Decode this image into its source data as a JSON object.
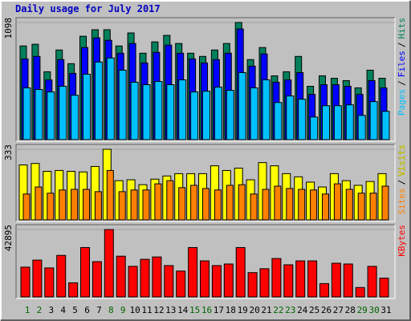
{
  "chart_data": [
    {
      "type": "bar",
      "title": "Daily usage for July 2017",
      "categories": [
        "1",
        "2",
        "3",
        "4",
        "5",
        "6",
        "7",
        "8",
        "9",
        "10",
        "11",
        "12",
        "13",
        "14",
        "15",
        "16",
        "17",
        "18",
        "19",
        "20",
        "21",
        "22",
        "23",
        "24",
        "25",
        "26",
        "27",
        "28",
        "29",
        "30",
        "31"
      ],
      "category_colors": [
        "#006400",
        "#006400",
        "#000000",
        "#000000",
        "#000000",
        "#000000",
        "#000000",
        "#006400",
        "#006400",
        "#000000",
        "#000000",
        "#000000",
        "#000000",
        "#000000",
        "#006400",
        "#006400",
        "#000000",
        "#000000",
        "#000000",
        "#000000",
        "#000000",
        "#006400",
        "#006400",
        "#000000",
        "#000000",
        "#000000",
        "#000000",
        "#000000",
        "#006400",
        "#006400",
        "#000000"
      ],
      "legend_separator": "/",
      "ylim": [
        0,
        1098
      ],
      "yticks": [
        1098
      ],
      "series": [
        {
          "name": "Hits",
          "color": "#00805c",
          "values": [
            878,
            894,
            636,
            840,
            712,
            969,
            1030,
            1030,
            878,
            1000,
            810,
            916,
            977,
            901,
            810,
            780,
            840,
            901,
            1098,
            750,
            863,
            598,
            636,
            780,
            500,
            598,
            575,
            553,
            485,
            651,
            575
          ]
        },
        {
          "name": "Files",
          "color": "#0000ff",
          "values": [
            757,
            780,
            560,
            750,
            621,
            863,
            954,
            931,
            810,
            901,
            719,
            818,
            886,
            810,
            757,
            719,
            750,
            810,
            1037,
            689,
            803,
            538,
            560,
            628,
            424,
            515,
            515,
            500,
            424,
            553,
            485
          ]
        },
        {
          "name": "Pages",
          "color": "#00c0ff",
          "values": [
            485,
            470,
            447,
            500,
            416,
            613,
            727,
            765,
            651,
            538,
            515,
            545,
            515,
            560,
            447,
            454,
            492,
            462,
            628,
            485,
            560,
            348,
            409,
            379,
            212,
            318,
            318,
            326,
            227,
            356,
            265
          ]
        }
      ]
    },
    {
      "type": "bar",
      "legend_separator": "/",
      "ylim": [
        0,
        333
      ],
      "yticks": [
        333
      ],
      "series": [
        {
          "name": "Visits",
          "color": "#ffff00",
          "values": [
            259,
            266,
            229,
            233,
            229,
            226,
            252,
            333,
            185,
            189,
            166,
            192,
            207,
            218,
            218,
            218,
            255,
            233,
            244,
            189,
            270,
            255,
            218,
            203,
            178,
            155,
            218,
            185,
            163,
            181,
            218
          ]
        },
        {
          "name": "Sites",
          "color": "#ff8000",
          "values": [
            122,
            155,
            126,
            141,
            144,
            144,
            133,
            233,
            133,
            141,
            141,
            170,
            185,
            152,
            163,
            148,
            141,
            163,
            166,
            122,
            144,
            159,
            148,
            144,
            141,
            122,
            170,
            144,
            126,
            126,
            159
          ]
        }
      ]
    },
    {
      "type": "bar",
      "ylim": [
        0,
        42895
      ],
      "yticks": [
        42895
      ],
      "series": [
        {
          "name": "KBytes",
          "color": "#ff0000",
          "values": [
            18954,
            23443,
            18455,
            26436,
            8978,
            31424,
            22445,
            42895,
            25937,
            19453,
            23942,
            25439,
            19952,
            16460,
            31424,
            22944,
            19952,
            20950,
            31424,
            15462,
            17957,
            24441,
            20451,
            22944,
            22944,
            8479,
            21448,
            20950,
            5985,
            19453,
            11971
          ]
        }
      ]
    }
  ]
}
